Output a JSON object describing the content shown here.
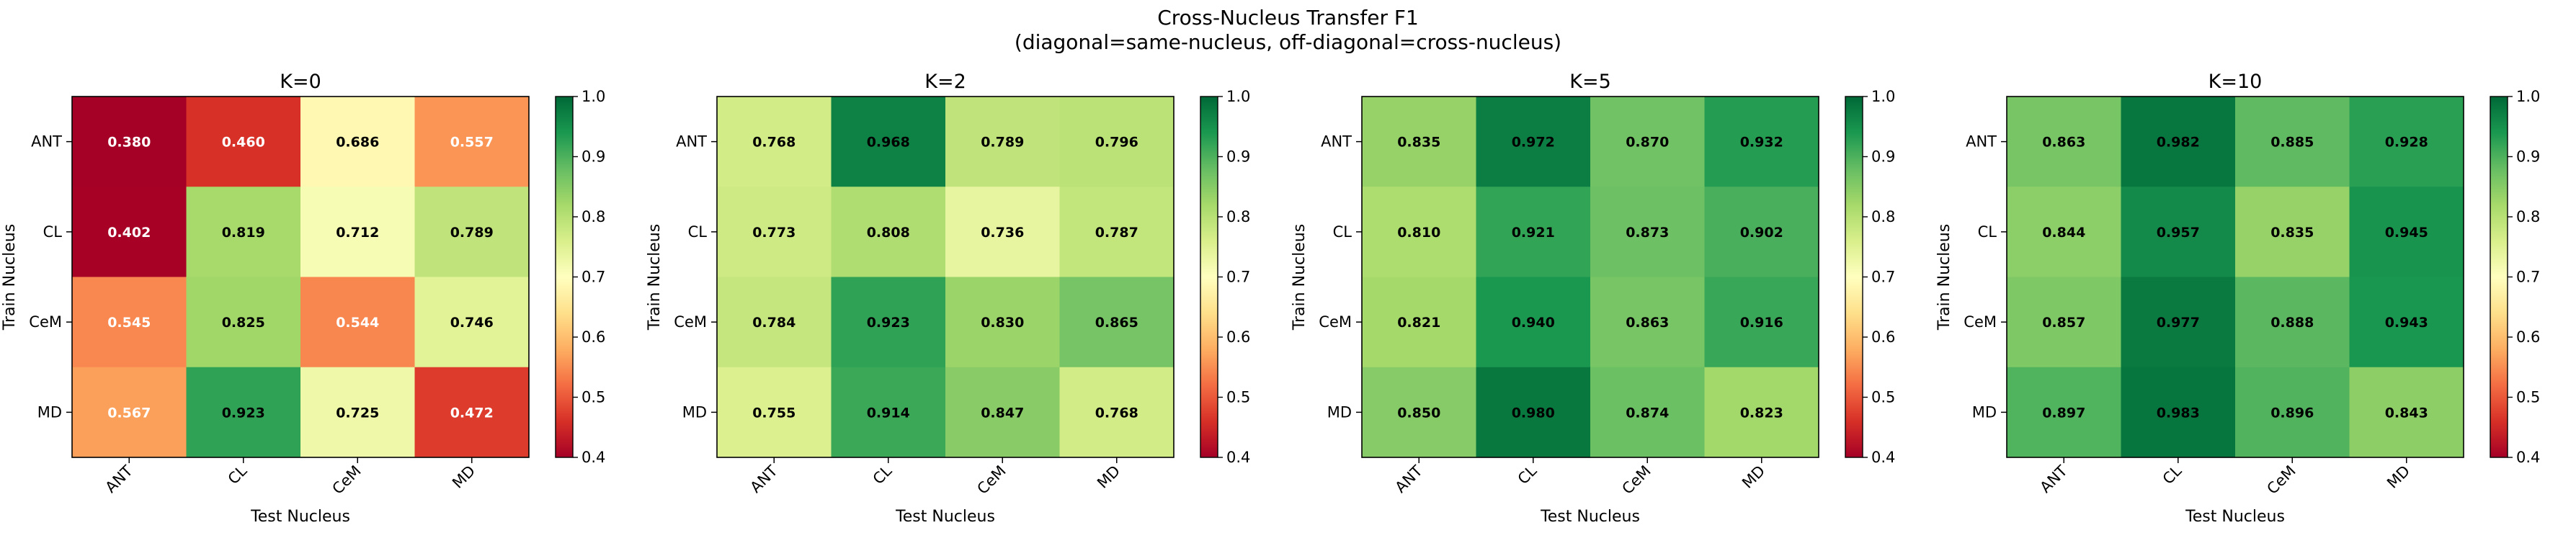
{
  "figure": {
    "title": "Cross-Nucleus Transfer F1",
    "subtitle": "(diagonal=same-nucleus, off-diagonal=cross-nucleus)"
  },
  "chart_data": [
    {
      "type": "heatmap",
      "title": "K=0",
      "xlabel": "Test Nucleus",
      "ylabel": "Train Nucleus",
      "x_categories": [
        "ANT",
        "CL",
        "CeM",
        "MD"
      ],
      "y_categories": [
        "ANT",
        "CL",
        "CeM",
        "MD"
      ],
      "values": [
        [
          0.38,
          0.46,
          0.686,
          0.557
        ],
        [
          0.402,
          0.819,
          0.712,
          0.789
        ],
        [
          0.545,
          0.825,
          0.544,
          0.746
        ],
        [
          0.567,
          0.923,
          0.725,
          0.472
        ]
      ],
      "labels": [
        [
          "0.380",
          "0.460",
          "0.686",
          "0.557"
        ],
        [
          "0.402",
          "0.819",
          "0.712",
          "0.789"
        ],
        [
          "0.545",
          "0.825",
          "0.544",
          "0.746"
        ],
        [
          "0.567",
          "0.923",
          "0.725",
          "0.472"
        ]
      ],
      "colorbar": {
        "range": [
          0.4,
          1.0
        ],
        "ticks": [
          "0.4",
          "0.5",
          "0.6",
          "0.7",
          "0.8",
          "0.9",
          "1.0"
        ],
        "colormap": "RdYlGn"
      }
    },
    {
      "type": "heatmap",
      "title": "K=2",
      "xlabel": "Test Nucleus",
      "ylabel": "Train Nucleus",
      "x_categories": [
        "ANT",
        "CL",
        "CeM",
        "MD"
      ],
      "y_categories": [
        "ANT",
        "CL",
        "CeM",
        "MD"
      ],
      "values": [
        [
          0.768,
          0.968,
          0.789,
          0.796
        ],
        [
          0.773,
          0.808,
          0.736,
          0.787
        ],
        [
          0.784,
          0.923,
          0.83,
          0.865
        ],
        [
          0.755,
          0.914,
          0.847,
          0.768
        ]
      ],
      "labels": [
        [
          "0.768",
          "0.968",
          "0.789",
          "0.796"
        ],
        [
          "0.773",
          "0.808",
          "0.736",
          "0.787"
        ],
        [
          "0.784",
          "0.923",
          "0.830",
          "0.865"
        ],
        [
          "0.755",
          "0.914",
          "0.847",
          "0.768"
        ]
      ],
      "colorbar": {
        "range": [
          0.4,
          1.0
        ],
        "ticks": [
          "0.4",
          "0.5",
          "0.6",
          "0.7",
          "0.8",
          "0.9",
          "1.0"
        ],
        "colormap": "RdYlGn"
      }
    },
    {
      "type": "heatmap",
      "title": "K=5",
      "xlabel": "Test Nucleus",
      "ylabel": "Train Nucleus",
      "x_categories": [
        "ANT",
        "CL",
        "CeM",
        "MD"
      ],
      "y_categories": [
        "ANT",
        "CL",
        "CeM",
        "MD"
      ],
      "values": [
        [
          0.835,
          0.972,
          0.87,
          0.932
        ],
        [
          0.81,
          0.921,
          0.873,
          0.902
        ],
        [
          0.821,
          0.94,
          0.863,
          0.916
        ],
        [
          0.85,
          0.98,
          0.874,
          0.823
        ]
      ],
      "labels": [
        [
          "0.835",
          "0.972",
          "0.870",
          "0.932"
        ],
        [
          "0.810",
          "0.921",
          "0.873",
          "0.902"
        ],
        [
          "0.821",
          "0.940",
          "0.863",
          "0.916"
        ],
        [
          "0.850",
          "0.980",
          "0.874",
          "0.823"
        ]
      ],
      "colorbar": {
        "range": [
          0.4,
          1.0
        ],
        "ticks": [
          "0.4",
          "0.5",
          "0.6",
          "0.7",
          "0.8",
          "0.9",
          "1.0"
        ],
        "colormap": "RdYlGn"
      }
    },
    {
      "type": "heatmap",
      "title": "K=10",
      "xlabel": "Test Nucleus",
      "ylabel": "Train Nucleus",
      "x_categories": [
        "ANT",
        "CL",
        "CeM",
        "MD"
      ],
      "y_categories": [
        "ANT",
        "CL",
        "CeM",
        "MD"
      ],
      "values": [
        [
          0.863,
          0.982,
          0.885,
          0.928
        ],
        [
          0.844,
          0.957,
          0.835,
          0.945
        ],
        [
          0.857,
          0.977,
          0.888,
          0.943
        ],
        [
          0.897,
          0.983,
          0.896,
          0.843
        ]
      ],
      "labels": [
        [
          "0.863",
          "0.982",
          "0.885",
          "0.928"
        ],
        [
          "0.844",
          "0.957",
          "0.835",
          "0.945"
        ],
        [
          "0.857",
          "0.977",
          "0.888",
          "0.943"
        ],
        [
          "0.897",
          "0.983",
          "0.896",
          "0.843"
        ]
      ],
      "colorbar": {
        "range": [
          0.4,
          1.0
        ],
        "ticks": [
          "0.4",
          "0.5",
          "0.6",
          "0.7",
          "0.8",
          "0.9",
          "1.0"
        ],
        "colormap": "RdYlGn"
      }
    }
  ]
}
